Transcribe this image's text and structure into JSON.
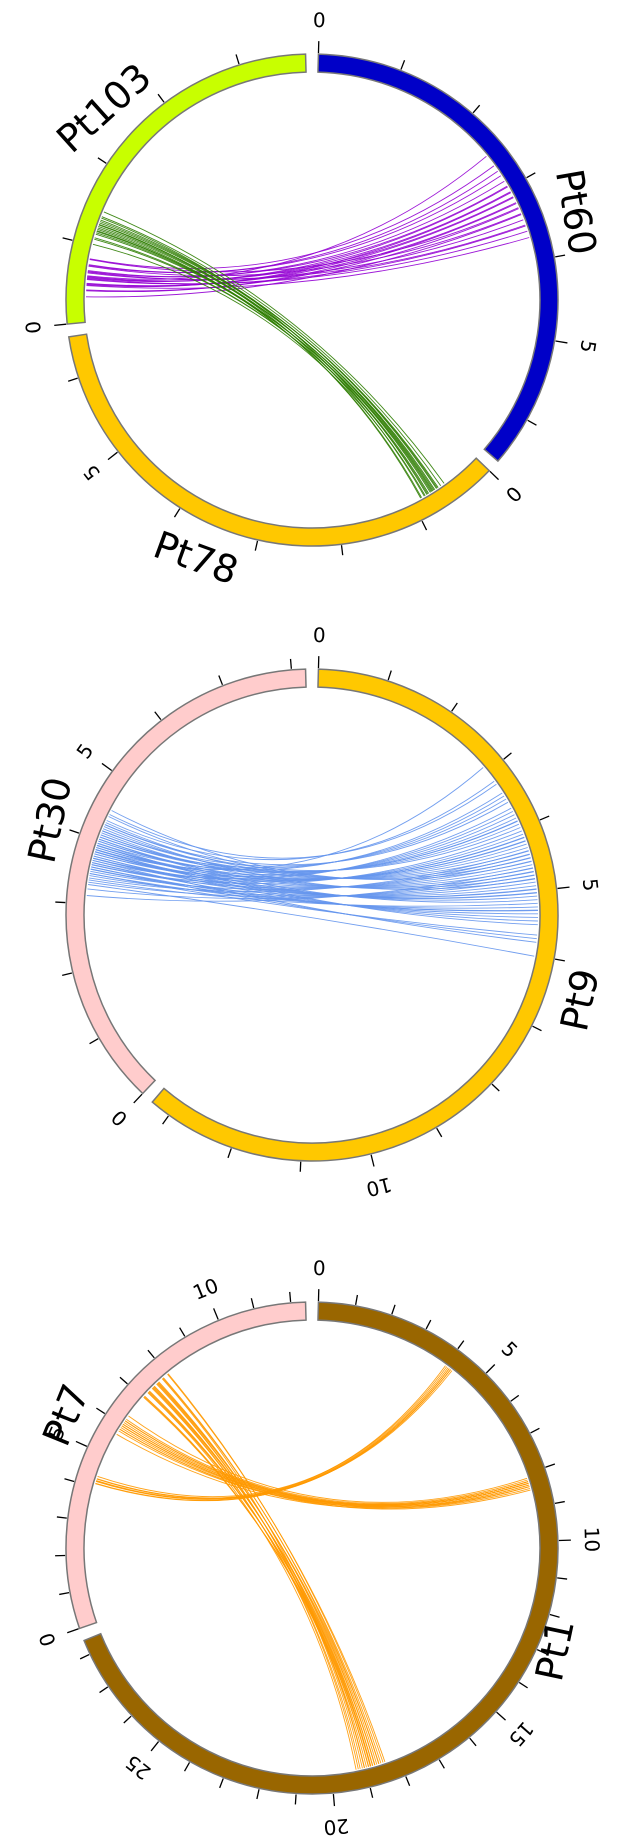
{
  "panels": [
    {
      "name": "Pt60-Pt103-Pt78",
      "chromosomes": [
        {
          "name": "Pt60",
          "color": "#0000c8",
          "length": 6.6,
          "tick_step": 1,
          "label_every": 5
        },
        {
          "name": "Pt78",
          "color": "#ffc800",
          "length": 6.5,
          "tick_step": 1,
          "label_every": 5
        },
        {
          "name": "Pt103",
          "color": "#c8ff00",
          "length": 4.8,
          "tick_step": 1,
          "label_every": 5
        }
      ],
      "links": [
        {
          "color": "#9400d3",
          "from": "Pt60",
          "from_range": [
            2.5,
            3.9
          ],
          "to": "Pt103",
          "to_range": [
            0.3,
            0.9
          ],
          "count": 22
        },
        {
          "color": "#2e7d00",
          "from": "Pt78",
          "from_range": [
            0.5,
            0.95
          ],
          "to": "Pt103",
          "to_range": [
            1.0,
            1.5
          ],
          "count": 18
        }
      ]
    },
    {
      "name": "Pt9-Pt30",
      "chromosomes": [
        {
          "name": "Pt9",
          "color": "#ffc800",
          "length": 13.3,
          "tick_step": 1,
          "label_every": 5
        },
        {
          "name": "Pt30",
          "color": "#ffcccc",
          "length": 8.2,
          "tick_step": 1,
          "label_every": 5
        }
      ],
      "links": [
        {
          "color": "#6495ed",
          "from": "Pt9",
          "from_range": [
            2.9,
            6.3
          ],
          "to": "Pt30",
          "to_range": [
            3.1,
            4.6
          ],
          "count": 60
        }
      ]
    },
    {
      "name": "Pt1-Pt7",
      "chromosomes": [
        {
          "name": "Pt1",
          "color": "#996600",
          "length": 28.4,
          "tick_step": 1,
          "label_every": 5
        },
        {
          "name": "Pt7",
          "color": "#ffcccc",
          "length": 12.4,
          "tick_step": 1,
          "label_every": 5
        }
      ],
      "links": [
        {
          "color": "#ff9900",
          "from": "Pt1",
          "from_range": [
            4.0,
            4.3
          ],
          "to": "Pt7",
          "to_range": [
            4.0,
            4.4
          ],
          "count": 8
        },
        {
          "color": "#ff9900",
          "from": "Pt1",
          "from_range": [
            8.1,
            8.5
          ],
          "to": "Pt7",
          "to_range": [
            5.6,
            6.4
          ],
          "count": 14
        },
        {
          "color": "#ff9900",
          "from": "Pt1",
          "from_range": [
            18.3,
            19.4
          ],
          "to": "Pt7",
          "to_range": [
            6.8,
            8.2
          ],
          "count": 22
        }
      ]
    }
  ]
}
